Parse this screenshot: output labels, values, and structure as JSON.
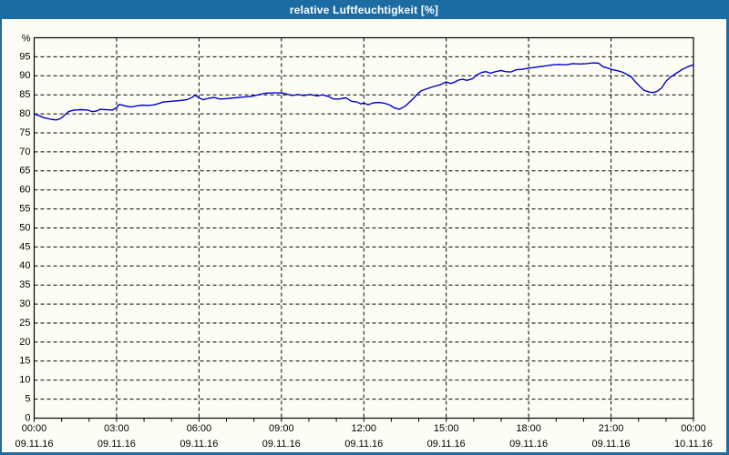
{
  "window": {
    "title": "relative Luftfeuchtigkeit [%]",
    "colors": {
      "titlebar": "#1d6ba3",
      "border": "#1d6ba3",
      "content_bg": "#fdfdf6",
      "plot_border": "#000000",
      "grid": "#000000",
      "text": "#000000",
      "line": "#0000cc"
    }
  },
  "chart_data": {
    "type": "line",
    "title": "relative Luftfeuchtigkeit [%]",
    "ylabel": "%",
    "xlabel": "",
    "ylim": [
      0,
      100
    ],
    "xlim_hours": [
      0,
      24
    ],
    "grid": "dashed",
    "legend": "none",
    "yticks": [
      0,
      5,
      10,
      15,
      20,
      25,
      30,
      35,
      40,
      45,
      50,
      55,
      60,
      65,
      70,
      75,
      80,
      85,
      90,
      95
    ],
    "y_unit_label": "%",
    "xticks": [
      {
        "hour": 0,
        "time": "00:00",
        "date": "09.11.16"
      },
      {
        "hour": 3,
        "time": "03:00",
        "date": "09.11.16"
      },
      {
        "hour": 6,
        "time": "06:00",
        "date": "09.11.16"
      },
      {
        "hour": 9,
        "time": "09:00",
        "date": "09.11.16"
      },
      {
        "hour": 12,
        "time": "12:00",
        "date": "09.11.16"
      },
      {
        "hour": 15,
        "time": "15:00",
        "date": "09.11.16"
      },
      {
        "hour": 18,
        "time": "18:00",
        "date": "09.11.16"
      },
      {
        "hour": 21,
        "time": "21:00",
        "date": "09.11.16"
      },
      {
        "hour": 24,
        "time": "00:00",
        "date": "10.11.16"
      }
    ],
    "minor_xtick_every_hours": 1,
    "vertical_grid_hours": [
      3,
      6,
      9,
      12,
      15,
      18,
      21
    ],
    "series": [
      {
        "name": "relative Luftfeuchtigkeit [%]",
        "color": "#0000cc",
        "points": [
          [
            0.0,
            80.0
          ],
          [
            0.15,
            79.6
          ],
          [
            0.35,
            79.0
          ],
          [
            0.6,
            78.6
          ],
          [
            0.8,
            78.4
          ],
          [
            0.95,
            78.7
          ],
          [
            1.1,
            79.6
          ],
          [
            1.25,
            80.6
          ],
          [
            1.45,
            81.0
          ],
          [
            1.7,
            81.1
          ],
          [
            1.95,
            81.0
          ],
          [
            2.1,
            80.6
          ],
          [
            2.25,
            80.7
          ],
          [
            2.4,
            81.2
          ],
          [
            2.6,
            81.1
          ],
          [
            2.85,
            81.0
          ],
          [
            3.0,
            81.6
          ],
          [
            3.1,
            82.5
          ],
          [
            3.3,
            82.1
          ],
          [
            3.5,
            81.8
          ],
          [
            3.75,
            82.1
          ],
          [
            3.95,
            82.3
          ],
          [
            4.15,
            82.2
          ],
          [
            4.4,
            82.4
          ],
          [
            4.7,
            83.1
          ],
          [
            5.0,
            83.3
          ],
          [
            5.3,
            83.5
          ],
          [
            5.55,
            83.7
          ],
          [
            5.75,
            84.3
          ],
          [
            5.85,
            84.9
          ],
          [
            6.0,
            84.2
          ],
          [
            6.15,
            83.7
          ],
          [
            6.35,
            84.1
          ],
          [
            6.55,
            84.3
          ],
          [
            6.75,
            83.9
          ],
          [
            7.0,
            84.0
          ],
          [
            7.3,
            84.2
          ],
          [
            7.6,
            84.4
          ],
          [
            7.9,
            84.6
          ],
          [
            8.15,
            85.0
          ],
          [
            8.4,
            85.4
          ],
          [
            8.7,
            85.5
          ],
          [
            9.0,
            85.5
          ],
          [
            9.2,
            85.2
          ],
          [
            9.4,
            84.8
          ],
          [
            9.6,
            85.1
          ],
          [
            9.8,
            84.8
          ],
          [
            10.05,
            85.1
          ],
          [
            10.3,
            84.7
          ],
          [
            10.5,
            85.0
          ],
          [
            10.7,
            84.6
          ],
          [
            10.9,
            83.9
          ],
          [
            11.1,
            83.9
          ],
          [
            11.35,
            84.2
          ],
          [
            11.55,
            83.3
          ],
          [
            11.75,
            83.1
          ],
          [
            11.9,
            82.6
          ],
          [
            12.0,
            82.9
          ],
          [
            12.15,
            82.4
          ],
          [
            12.35,
            82.9
          ],
          [
            12.55,
            83.0
          ],
          [
            12.75,
            82.8
          ],
          [
            12.95,
            82.3
          ],
          [
            13.1,
            81.6
          ],
          [
            13.3,
            81.2
          ],
          [
            13.5,
            82.0
          ],
          [
            13.65,
            83.0
          ],
          [
            13.8,
            84.0
          ],
          [
            13.95,
            85.2
          ],
          [
            14.1,
            86.1
          ],
          [
            14.3,
            86.6
          ],
          [
            14.55,
            87.2
          ],
          [
            14.8,
            87.7
          ],
          [
            15.0,
            88.4
          ],
          [
            15.15,
            88.0
          ],
          [
            15.3,
            88.3
          ],
          [
            15.45,
            88.9
          ],
          [
            15.6,
            89.1
          ],
          [
            15.75,
            88.8
          ],
          [
            15.95,
            89.2
          ],
          [
            16.1,
            90.2
          ],
          [
            16.3,
            90.9
          ],
          [
            16.45,
            91.1
          ],
          [
            16.6,
            90.7
          ],
          [
            16.8,
            91.1
          ],
          [
            17.0,
            91.4
          ],
          [
            17.15,
            91.1
          ],
          [
            17.35,
            91.0
          ],
          [
            17.55,
            91.6
          ],
          [
            17.75,
            91.7
          ],
          [
            18.0,
            92.0
          ],
          [
            18.3,
            92.3
          ],
          [
            18.6,
            92.6
          ],
          [
            18.9,
            92.9
          ],
          [
            19.1,
            93.0
          ],
          [
            19.35,
            92.9
          ],
          [
            19.6,
            93.2
          ],
          [
            19.85,
            93.1
          ],
          [
            20.1,
            93.2
          ],
          [
            20.35,
            93.4
          ],
          [
            20.55,
            93.3
          ],
          [
            20.7,
            92.4
          ],
          [
            20.9,
            92.0
          ],
          [
            21.0,
            91.7
          ],
          [
            21.2,
            91.4
          ],
          [
            21.4,
            91.0
          ],
          [
            21.6,
            90.3
          ],
          [
            21.75,
            89.6
          ],
          [
            21.9,
            88.3
          ],
          [
            22.05,
            87.2
          ],
          [
            22.2,
            86.2
          ],
          [
            22.4,
            85.7
          ],
          [
            22.55,
            85.6
          ],
          [
            22.7,
            86.0
          ],
          [
            22.85,
            86.9
          ],
          [
            23.0,
            88.6
          ],
          [
            23.15,
            89.6
          ],
          [
            23.3,
            90.3
          ],
          [
            23.45,
            91.0
          ],
          [
            23.6,
            91.7
          ],
          [
            23.8,
            92.4
          ],
          [
            24.0,
            92.9
          ]
        ]
      }
    ]
  }
}
